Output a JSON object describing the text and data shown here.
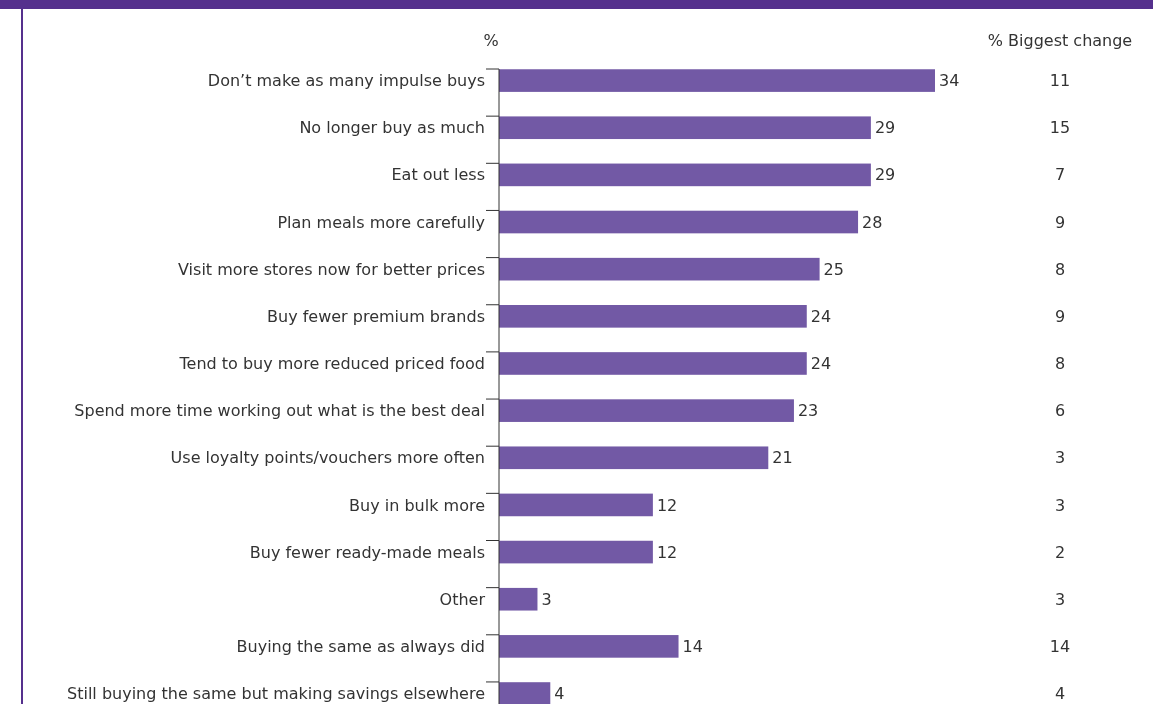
{
  "chart_data": {
    "type": "bar",
    "orientation": "horizontal",
    "xlabel": "%",
    "categories": [
      "Don’t make as many impulse buys",
      "No longer buy as much",
      "Eat out less",
      "Plan meals more carefully",
      "Visit more stores now for better prices",
      "Buy fewer premium brands",
      "Tend to buy more reduced priced food",
      "Spend more time working out what is the best deal",
      "Use loyalty points/vouchers more often",
      "Buy in bulk more",
      "Buy fewer ready-made meals",
      "Other",
      "Buying the same as always did",
      "Still buying the same but making savings elsewhere"
    ],
    "values": [
      34,
      29,
      29,
      28,
      25,
      24,
      24,
      23,
      21,
      12,
      12,
      3,
      14,
      4
    ],
    "color": "#7259a5",
    "tick_labels": "y",
    "data_labels": true,
    "annotations": [
      "% Biggest change",
      "11",
      "15",
      "7",
      "9",
      "8",
      "9",
      "8",
      "6",
      "3",
      "3",
      "2",
      "3",
      "14",
      "4"
    ]
  }
}
